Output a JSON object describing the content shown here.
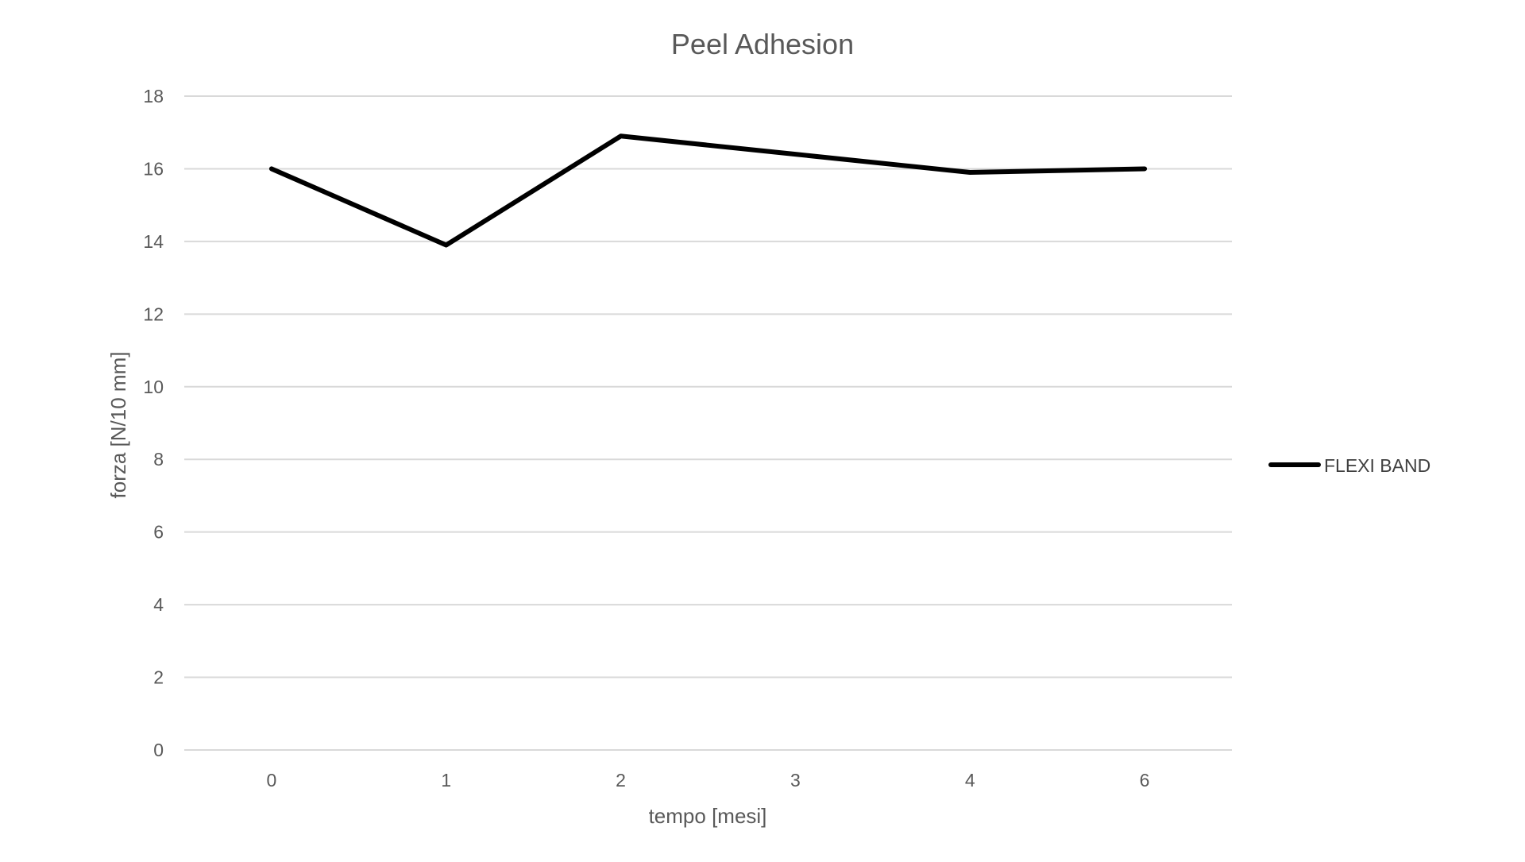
{
  "chart_data": {
    "type": "line",
    "title": "Peel Adhesion",
    "xlabel": "tempo [mesi]",
    "ylabel": "forza [N/10 mm]",
    "categories": [
      "0",
      "1",
      "2",
      "3",
      "4",
      "6"
    ],
    "yticks": [
      "0",
      "2",
      "4",
      "6",
      "8",
      "10",
      "12",
      "14",
      "16",
      "18"
    ],
    "ylim": [
      0,
      18
    ],
    "grid": true,
    "legend_position": "right",
    "series": [
      {
        "name": "FLEXI BAND",
        "color": "#000000",
        "values": [
          16.0,
          13.9,
          16.9,
          16.4,
          15.9,
          16.0
        ]
      }
    ]
  }
}
